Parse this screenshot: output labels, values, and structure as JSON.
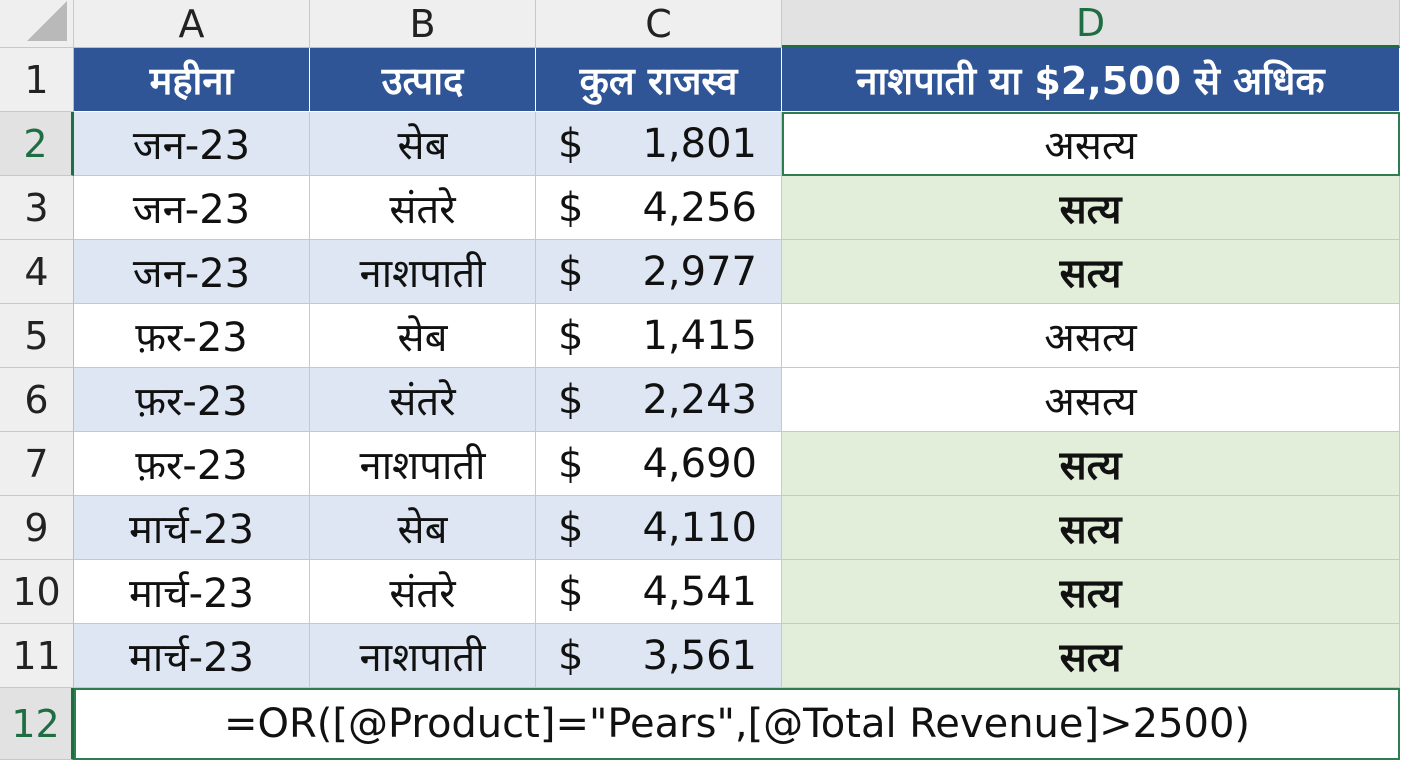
{
  "columns": [
    "A",
    "B",
    "C",
    "D"
  ],
  "selected_column": "D",
  "header_row": {
    "row_label": "1",
    "month": "महीना",
    "product": "उत्पाद",
    "revenue": "कुल राजस्व",
    "result": "नाशपाती या $2,500 से अधिक"
  },
  "rows": [
    {
      "row": "2",
      "month": "जन-23",
      "product": "सेब",
      "currency": "$",
      "amount": "1,801",
      "result": "असत्य",
      "is_true": false
    },
    {
      "row": "3",
      "month": "जन-23",
      "product": "संतरे",
      "currency": "$",
      "amount": "4,256",
      "result": "सत्य",
      "is_true": true
    },
    {
      "row": "4",
      "month": "जन-23",
      "product": "नाशपाती",
      "currency": "$",
      "amount": "2,977",
      "result": "सत्य",
      "is_true": true
    },
    {
      "row": "5",
      "month": "फ़र-23",
      "product": "सेब",
      "currency": "$",
      "amount": "1,415",
      "result": "असत्य",
      "is_true": false
    },
    {
      "row": "6",
      "month": "फ़र-23",
      "product": "संतरे",
      "currency": "$",
      "amount": "2,243",
      "result": "असत्य",
      "is_true": false
    },
    {
      "row": "7",
      "month": "फ़र-23",
      "product": "नाशपाती",
      "currency": "$",
      "amount": "4,690",
      "result": "सत्य",
      "is_true": true
    },
    {
      "row": "9",
      "month": "मार्च-23",
      "product": "सेब",
      "currency": "$",
      "amount": "4,110",
      "result": "सत्य",
      "is_true": true
    },
    {
      "row": "10",
      "month": "मार्च-23",
      "product": "संतरे",
      "currency": "$",
      "amount": "4,541",
      "result": "सत्य",
      "is_true": true
    },
    {
      "row": "11",
      "month": "मार्च-23",
      "product": "नाशपाती",
      "currency": "$",
      "amount": "3,561",
      "result": "सत्य",
      "is_true": true
    }
  ],
  "formula_row": {
    "row": "12",
    "formula": "=OR([@Product]=\"Pears\",[@Total Revenue]>2500)"
  },
  "colors": {
    "header_bg": "#2f5597",
    "band_bg": "#dde6f2",
    "true_bg": "#e2eed9",
    "selection": "#1f6e43"
  }
}
